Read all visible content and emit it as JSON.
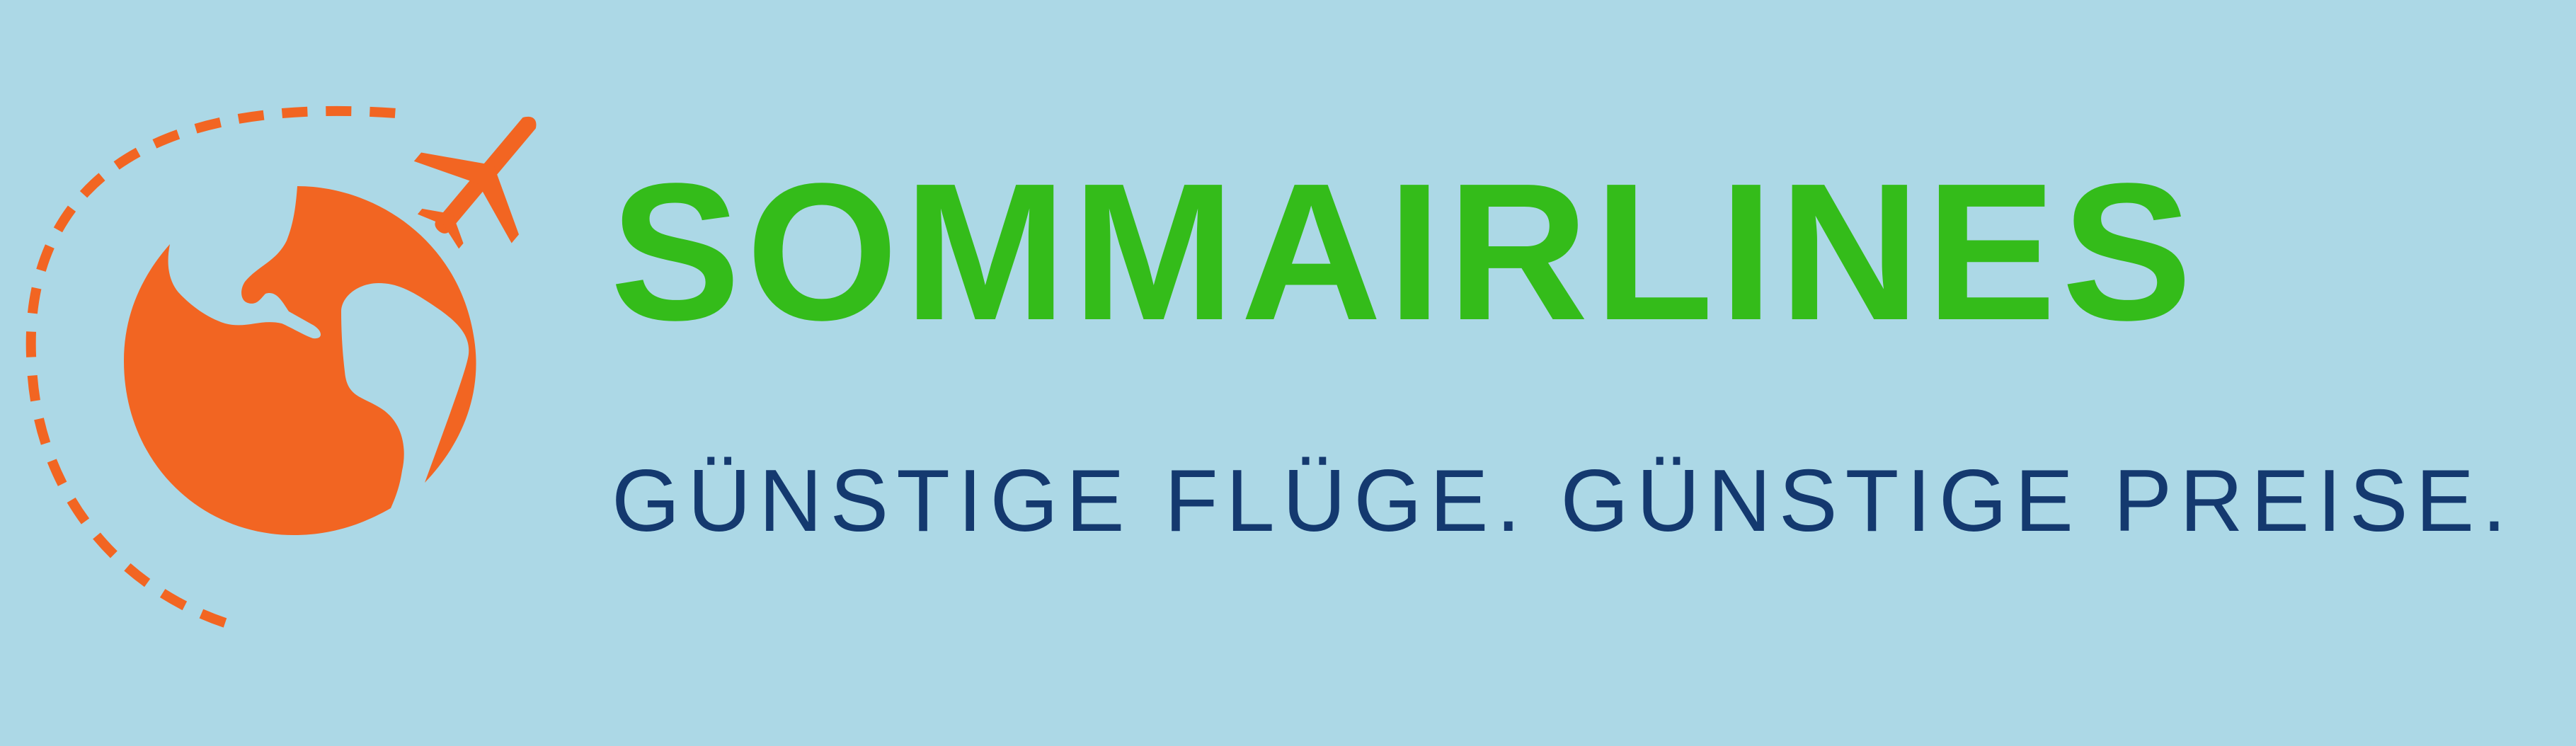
{
  "colors": {
    "background": "#acd8e6",
    "brand_green": "#34bc1a",
    "accent_orange": "#f26522",
    "tagline_navy": "#14396f"
  },
  "logo": {
    "icons": [
      "globe-icon",
      "airplane-icon",
      "dashed-flight-path"
    ]
  },
  "brand": {
    "name": "SOMMAIRLINES"
  },
  "tagline": {
    "text": "GÜNSTIGE FLÜGE. GÜNSTIGE PREISE."
  }
}
